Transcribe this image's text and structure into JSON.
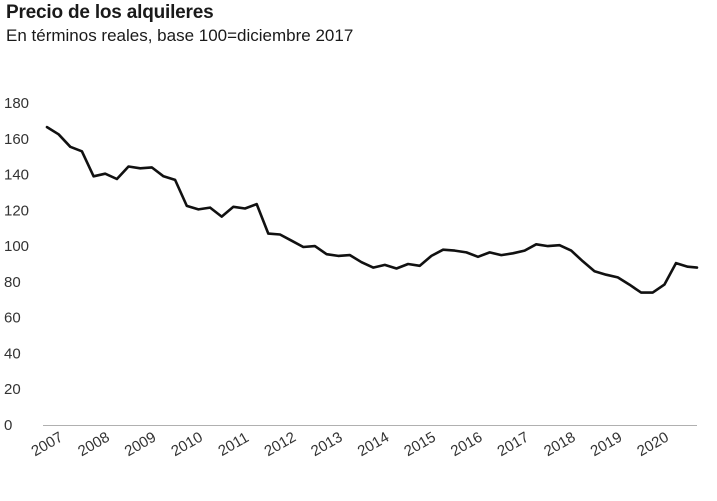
{
  "chart_data": {
    "type": "line",
    "title": "Precio de los alquileres",
    "subtitle": "En términos reales, base 100=diciembre 2017",
    "xlabel": "",
    "ylabel": "",
    "ylim": [
      0,
      180
    ],
    "yticks": [
      0,
      20,
      40,
      60,
      80,
      100,
      120,
      140,
      160,
      180
    ],
    "xlim": [
      2007,
      2020.95
    ],
    "xticks": [
      "2007",
      "2008",
      "2009",
      "2010",
      "2011",
      "2012",
      "2013",
      "2014",
      "2015",
      "2016",
      "2017",
      "2018",
      "2019",
      "2020"
    ],
    "grid": false,
    "legend": "none",
    "line_color": "#111111",
    "series": [
      {
        "x": [
          2007.0,
          2007.25,
          2007.5,
          2007.75,
          2008.0,
          2008.25,
          2008.5,
          2008.75,
          2009.0,
          2009.25,
          2009.5,
          2009.75,
          2010.0,
          2010.25,
          2010.5,
          2010.75,
          2011.0,
          2011.25,
          2011.5,
          2011.75,
          2012.0,
          2012.25,
          2012.5,
          2012.75,
          2013.0,
          2013.25,
          2013.5,
          2013.75,
          2014.0,
          2014.25,
          2014.5,
          2014.75,
          2015.0,
          2015.25,
          2015.5,
          2015.75,
          2016.0,
          2016.25,
          2016.5,
          2016.75,
          2017.0,
          2017.25,
          2017.5,
          2017.75,
          2018.0,
          2018.25,
          2018.5,
          2018.75,
          2019.0,
          2019.25,
          2019.5,
          2019.75,
          2020.0,
          2020.25,
          2020.5,
          2020.75,
          2020.95
        ],
        "values": [
          166.5,
          162.5,
          155.5,
          153,
          139,
          140.5,
          137.5,
          144.5,
          143.5,
          144,
          139,
          137,
          122.5,
          120.5,
          121.5,
          116.5,
          122,
          121,
          123.5,
          107,
          106.5,
          103,
          99.5,
          100,
          95.5,
          94.5,
          95,
          91,
          88,
          89.5,
          87.5,
          90,
          89,
          94.5,
          98,
          97.5,
          96.5,
          94,
          96.5,
          95,
          96,
          97.5,
          101,
          100,
          100.5,
          97.5,
          91.5,
          86,
          84,
          82.5,
          78.5,
          74,
          74,
          78.5,
          90.5,
          88.5,
          88
        ]
      }
    ]
  }
}
